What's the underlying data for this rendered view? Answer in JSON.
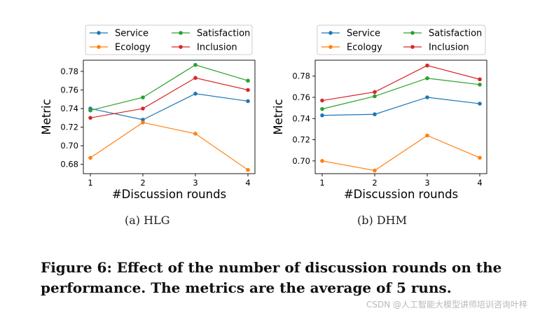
{
  "chart_data": [
    {
      "type": "line",
      "xlabel": "#Discussion rounds",
      "ylabel": "Metric",
      "x": [
        1,
        2,
        3,
        4
      ],
      "xticks": [
        "1",
        "2",
        "3",
        "4"
      ],
      "ylim": [
        0.67,
        0.792
      ],
      "yticks": [
        0.68,
        0.7,
        0.72,
        0.74,
        0.76,
        0.78
      ],
      "ytick_labels": [
        "0.68",
        "0.70",
        "0.72",
        "0.74",
        "0.76",
        "0.78"
      ],
      "legend_position": "top",
      "series": [
        {
          "name": "Service",
          "color": "#1f77b4",
          "values": [
            0.74,
            0.728,
            0.756,
            0.748
          ]
        },
        {
          "name": "Ecology",
          "color": "#ff7f0e",
          "values": [
            0.687,
            0.725,
            0.713,
            0.674
          ]
        },
        {
          "name": "Satisfaction",
          "color": "#2ca02c",
          "values": [
            0.738,
            0.752,
            0.787,
            0.77
          ]
        },
        {
          "name": "Inclusion",
          "color": "#d62728",
          "values": [
            0.73,
            0.74,
            0.773,
            0.76
          ]
        }
      ],
      "subcaption": "(a)  HLG"
    },
    {
      "type": "line",
      "xlabel": "#Discussion rounds",
      "ylabel": "Metric",
      "x": [
        1,
        2,
        3,
        4
      ],
      "xticks": [
        "1",
        "2",
        "3",
        "4"
      ],
      "ylim": [
        0.688,
        0.795
      ],
      "yticks": [
        0.7,
        0.72,
        0.74,
        0.76,
        0.78
      ],
      "ytick_labels": [
        "0.70",
        "0.72",
        "0.74",
        "0.76",
        "0.78"
      ],
      "legend_position": "top",
      "series": [
        {
          "name": "Service",
          "color": "#1f77b4",
          "values": [
            0.743,
            0.744,
            0.76,
            0.754
          ]
        },
        {
          "name": "Ecology",
          "color": "#ff7f0e",
          "values": [
            0.7,
            0.691,
            0.724,
            0.703
          ]
        },
        {
          "name": "Satisfaction",
          "color": "#2ca02c",
          "values": [
            0.749,
            0.761,
            0.778,
            0.772
          ]
        },
        {
          "name": "Inclusion",
          "color": "#d62728",
          "values": [
            0.757,
            0.765,
            0.79,
            0.777
          ]
        }
      ],
      "subcaption": "(b)  DHM"
    }
  ],
  "figure_caption": "Figure 6: Effect of the number of discussion rounds on the performance. The metrics are the average of 5 runs.",
  "watermark": "CSDN @人工智能大模型讲师培训咨询叶梓"
}
